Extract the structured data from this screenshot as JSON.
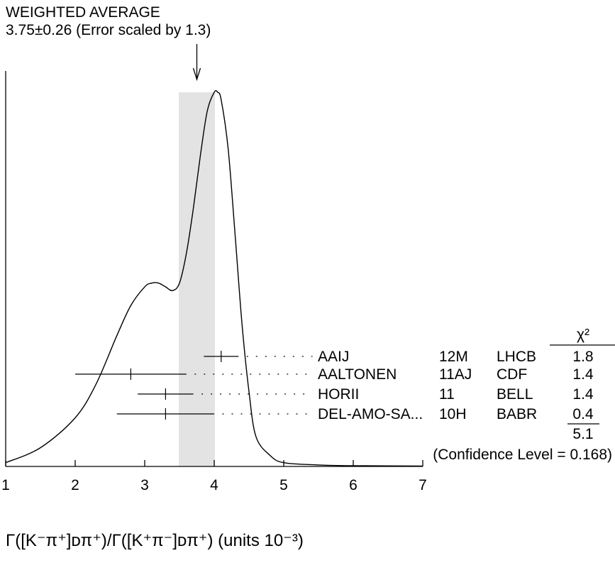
{
  "chart_data": {
    "type": "ideogram",
    "title": "WEIGHTED AVERAGE",
    "subtitle": "3.75±0.26 (Error scaled by 1.3)",
    "xlabel": "Γ([K⁻π⁺]ᴅπ⁺)/Γ([K⁺π⁻]ᴅπ⁺) (units 10⁻³)",
    "xlim": [
      1,
      7
    ],
    "x_ticks": [
      "1",
      "2",
      "3",
      "4",
      "5",
      "6",
      "7"
    ],
    "weighted_average": {
      "value": 3.75,
      "error": 0.26,
      "band": [
        3.49,
        4.01
      ]
    },
    "chi2_header": "χ²",
    "measurements": [
      {
        "author": "AAIJ",
        "ref": "12M",
        "experiment": "LHCB",
        "value": 4.1,
        "low": 3.85,
        "high": 4.35,
        "chi2": "1.8"
      },
      {
        "author": "AALTONEN",
        "ref": "11AJ",
        "experiment": "CDF",
        "value": 2.8,
        "low": 2.0,
        "high": 3.6,
        "chi2": "1.4"
      },
      {
        "author": "HORII",
        "ref": "11",
        "experiment": "BELL",
        "value": 3.3,
        "low": 2.9,
        "high": 3.7,
        "chi2": "1.4"
      },
      {
        "author": "DEL-AMO-SA...",
        "ref": "10H",
        "experiment": "BABR",
        "value": 3.3,
        "low": 2.6,
        "high": 4.0,
        "chi2": "0.4"
      }
    ],
    "chi2_total": "5.1",
    "confidence_level": "(Confidence Level = 0.168)",
    "ideogram_curve": {
      "x": [
        1.0,
        1.5,
        2.0,
        2.3,
        2.6,
        2.8,
        3.0,
        3.1,
        3.2,
        3.3,
        3.4,
        3.5,
        3.6,
        3.7,
        3.8,
        3.9,
        4.0,
        4.05,
        4.1,
        4.2,
        4.3,
        4.4,
        4.5,
        4.6,
        4.8,
        5.0,
        5.5,
        6.0,
        7.0
      ],
      "y": [
        0.01,
        0.05,
        0.13,
        0.22,
        0.35,
        0.43,
        0.48,
        0.49,
        0.49,
        0.48,
        0.47,
        0.49,
        0.57,
        0.69,
        0.83,
        0.95,
        1.0,
        1.0,
        0.98,
        0.85,
        0.62,
        0.38,
        0.2,
        0.08,
        0.03,
        0.01,
        0.004,
        0.002,
        0.001
      ]
    }
  }
}
